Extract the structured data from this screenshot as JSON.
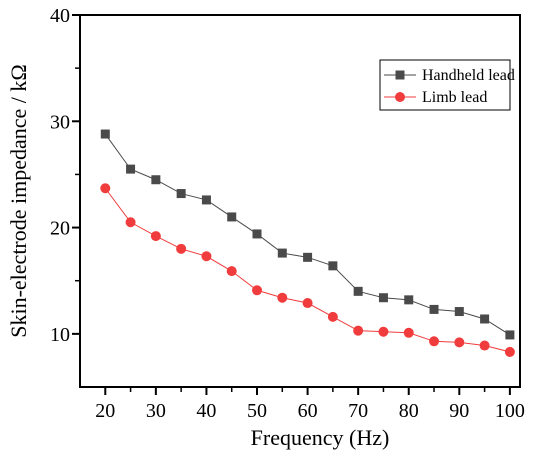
{
  "chart_data": {
    "type": "line",
    "title": "",
    "xlabel": "Frequency (Hz)",
    "ylabel": "Skin-electrode impedance / kΩ",
    "xlim": [
      15,
      102
    ],
    "ylim": [
      5,
      40
    ],
    "x_ticks": [
      20,
      30,
      40,
      50,
      60,
      70,
      80,
      90,
      100
    ],
    "x_tick_labels": [
      "20",
      "30",
      "40",
      "50",
      "60",
      "70",
      "80",
      "90",
      "100"
    ],
    "y_ticks": [
      10,
      20,
      30,
      40
    ],
    "y_tick_labels": [
      "10",
      "20",
      "30",
      "40"
    ],
    "grid": false,
    "legend_position": "top-right",
    "x": [
      20,
      25,
      30,
      35,
      40,
      45,
      50,
      55,
      60,
      65,
      70,
      75,
      80,
      85,
      90,
      95,
      100
    ],
    "series": [
      {
        "name": "Handheld lead",
        "marker": "square",
        "color": "#4a4a4a",
        "values": [
          28.8,
          25.5,
          24.5,
          23.2,
          22.6,
          21.0,
          19.4,
          17.6,
          17.2,
          16.4,
          14.0,
          13.4,
          13.2,
          12.3,
          12.1,
          11.4,
          9.9
        ]
      },
      {
        "name": "Limb lead",
        "marker": "circle",
        "color": "#f03c3c",
        "values": [
          23.7,
          20.5,
          19.2,
          18.0,
          17.3,
          15.9,
          14.1,
          13.4,
          12.9,
          11.6,
          10.3,
          10.2,
          10.1,
          9.3,
          9.2,
          8.9,
          8.3
        ]
      }
    ]
  }
}
